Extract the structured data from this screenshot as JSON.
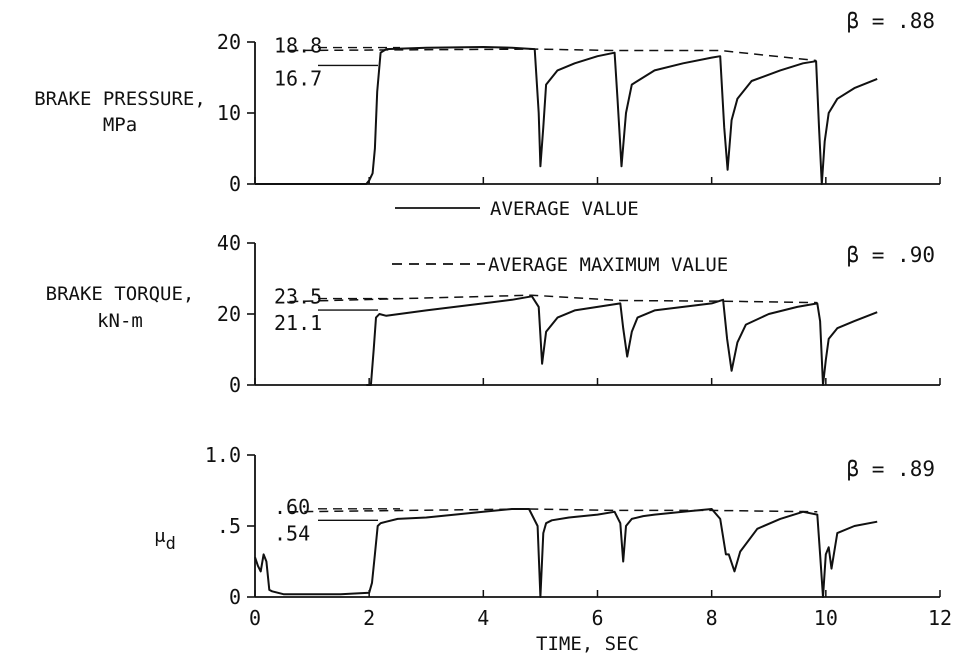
{
  "chart_data": [
    {
      "type": "line",
      "ylabel": [
        "BRAKE PRESSURE,",
        "MPa"
      ],
      "beta": "β = .88",
      "ylim": [
        0,
        20
      ],
      "yticks": [
        "0",
        "10",
        "20"
      ],
      "avg_value": 16.7,
      "avg_value_label": "16.7",
      "avg_max_value": 18.8,
      "avg_max_value_label": "18.8",
      "series": [
        {
          "name": "AVERAGE VALUE",
          "style": "solid",
          "x": [
            0.0,
            1.95,
            2.0,
            2.06,
            2.1,
            2.14,
            2.2,
            2.3,
            3.0,
            4.0,
            4.5,
            4.9,
            4.97,
            5.0,
            5.05,
            5.1,
            5.3,
            5.6,
            6.0,
            6.3,
            6.35,
            6.42,
            6.5,
            6.6,
            7.0,
            7.5,
            8.0,
            8.15,
            8.22,
            8.28,
            8.35,
            8.45,
            8.7,
            9.2,
            9.6,
            9.83,
            9.88,
            9.93,
            9.98,
            10.05,
            10.2,
            10.5,
            10.9
          ],
          "y": [
            0,
            0,
            0.5,
            1.5,
            5,
            13,
            18.5,
            19.0,
            19.2,
            19.3,
            19.2,
            19.0,
            10,
            2.5,
            8,
            14,
            16,
            17,
            18,
            18.5,
            12,
            2.5,
            10,
            14,
            16,
            17,
            17.8,
            18,
            8,
            2,
            9,
            12,
            14.5,
            16,
            17,
            17.3,
            8,
            0,
            6,
            10,
            12,
            13.5,
            14.8
          ]
        },
        {
          "name": "AVERAGE MAXIMUM VALUE",
          "style": "dashed",
          "x": [
            0.6,
            4.9,
            6.3,
            8.15,
            9.83
          ],
          "y": [
            18.8,
            19.0,
            18.8,
            18.8,
            17.4
          ]
        }
      ]
    },
    {
      "type": "line",
      "ylabel": [
        "BRAKE TORQUE,",
        "kN-m"
      ],
      "beta": "β = .90",
      "ylim": [
        0,
        40
      ],
      "yticks": [
        "0",
        "20",
        "40"
      ],
      "avg_value": 21.1,
      "avg_value_label": "21.1",
      "avg_max_value": 23.5,
      "avg_max_value_label": "23.5",
      "series": [
        {
          "name": "AVERAGE VALUE",
          "style": "solid",
          "x": [
            1.95,
            2.03,
            2.08,
            2.12,
            2.18,
            2.3,
            3.0,
            4.0,
            4.5,
            4.85,
            4.97,
            5.03,
            5.1,
            5.3,
            5.6,
            6.0,
            6.4,
            6.45,
            6.52,
            6.6,
            6.7,
            7.0,
            7.5,
            8.0,
            8.2,
            8.27,
            8.35,
            8.45,
            8.6,
            9.0,
            9.5,
            9.85,
            9.9,
            9.95,
            10.0,
            10.05,
            10.2,
            10.5,
            10.9
          ],
          "y": [
            0,
            0,
            10,
            19,
            20,
            19.5,
            21,
            23,
            24,
            25,
            22,
            6,
            15,
            19,
            21,
            22,
            23,
            16,
            8,
            15,
            19,
            21,
            22,
            23,
            24,
            13,
            4,
            12,
            17,
            20,
            22,
            23,
            18,
            0,
            7,
            13,
            16,
            18,
            20.5
          ]
        },
        {
          "name": "AVERAGE MAXIMUM VALUE",
          "style": "dashed",
          "x": [
            0.6,
            4.85,
            6.4,
            8.2,
            9.85
          ],
          "y": [
            23.5,
            25.3,
            23.8,
            23.6,
            23.2
          ]
        }
      ]
    },
    {
      "type": "line",
      "ylabel": [
        "μd"
      ],
      "beta": "β = .89",
      "ylim": [
        0,
        1.0
      ],
      "yticks": [
        "0",
        ".5",
        "1.0"
      ],
      "avg_value": 0.54,
      "avg_value_label": ".54",
      "avg_max_value": 0.6,
      "avg_max_value_label": ".60",
      "xlim": [
        0,
        12
      ],
      "xticks": [
        "0",
        "2",
        "4",
        "6",
        "8",
        "10",
        "12"
      ],
      "xlabel": "TIME, SEC",
      "series": [
        {
          "name": "AVERAGE VALUE",
          "style": "solid",
          "x": [
            0.0,
            0.05,
            0.1,
            0.15,
            0.2,
            0.25,
            0.3,
            0.5,
            1.0,
            1.5,
            2.0,
            2.05,
            2.1,
            2.15,
            2.2,
            2.3,
            2.5,
            3.0,
            3.5,
            4.0,
            4.5,
            4.8,
            4.95,
            5.0,
            5.05,
            5.1,
            5.2,
            5.5,
            6.0,
            6.3,
            6.4,
            6.45,
            6.5,
            6.6,
            6.8,
            7.0,
            7.5,
            8.0,
            8.15,
            8.25,
            8.3,
            8.4,
            8.5,
            8.8,
            9.2,
            9.6,
            9.85,
            9.9,
            9.95,
            10.0,
            10.05,
            10.1,
            10.2,
            10.5,
            10.9
          ],
          "y": [
            0.28,
            0.22,
            0.18,
            0.3,
            0.25,
            0.05,
            0.04,
            0.02,
            0.02,
            0.02,
            0.03,
            0.1,
            0.3,
            0.5,
            0.52,
            0.53,
            0.55,
            0.56,
            0.58,
            0.6,
            0.62,
            0.62,
            0.5,
            0.0,
            0.45,
            0.52,
            0.54,
            0.56,
            0.58,
            0.6,
            0.52,
            0.25,
            0.5,
            0.55,
            0.57,
            0.58,
            0.6,
            0.62,
            0.55,
            0.3,
            0.3,
            0.18,
            0.32,
            0.48,
            0.55,
            0.6,
            0.58,
            0.3,
            0.0,
            0.3,
            0.35,
            0.2,
            0.45,
            0.5,
            0.53
          ]
        },
        {
          "name": "AVERAGE MAXIMUM VALUE",
          "style": "dashed",
          "x": [
            0.6,
            4.8,
            6.3,
            8.0,
            9.85
          ],
          "y": [
            0.6,
            0.62,
            0.61,
            0.61,
            0.6
          ]
        }
      ]
    }
  ],
  "legend": {
    "solid_label": "AVERAGE VALUE",
    "dashed_label": "AVERAGE MAXIMUM VALUE"
  }
}
